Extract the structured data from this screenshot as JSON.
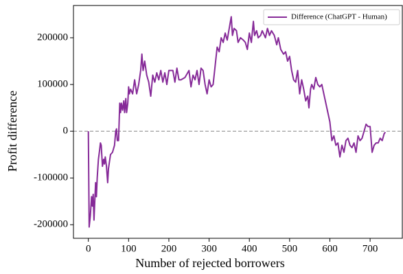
{
  "chart_data": {
    "type": "line",
    "xlabel": "Number of rejected borrowers",
    "ylabel": "Profit difference",
    "xlim": [
      -37,
      780
    ],
    "ylim": [
      -229000,
      269000
    ],
    "xticks": [
      0,
      100,
      200,
      300,
      400,
      500,
      600,
      700
    ],
    "yticks": [
      -200000,
      -100000,
      0,
      100000,
      200000
    ],
    "reference_line": 0,
    "legend": "upper right",
    "x": [
      0,
      2,
      5,
      8,
      10,
      12,
      14,
      16,
      18,
      20,
      22,
      25,
      28,
      30,
      32,
      35,
      38,
      40,
      42,
      45,
      48,
      50,
      55,
      60,
      65,
      68,
      70,
      72,
      75,
      78,
      80,
      82,
      85,
      88,
      90,
      93,
      95,
      98,
      100,
      102,
      105,
      110,
      115,
      120,
      125,
      130,
      133,
      136,
      140,
      145,
      150,
      155,
      160,
      165,
      170,
      175,
      180,
      185,
      190,
      195,
      200,
      210,
      215,
      220,
      225,
      230,
      240,
      250,
      255,
      260,
      265,
      270,
      275,
      280,
      285,
      290,
      295,
      300,
      305,
      310,
      315,
      320,
      325,
      330,
      335,
      340,
      345,
      350,
      355,
      358,
      362,
      368,
      372,
      378,
      385,
      390,
      395,
      400,
      405,
      410,
      413,
      418,
      422,
      428,
      432,
      440,
      445,
      450,
      455,
      462,
      468,
      472,
      478,
      485,
      490,
      495,
      500,
      505,
      510,
      515,
      520,
      525,
      530,
      535,
      540,
      545,
      548,
      552,
      555,
      560,
      565,
      570,
      575,
      580,
      585,
      590,
      595,
      600,
      605,
      610,
      615,
      620,
      625,
      630,
      635,
      640,
      645,
      650,
      655,
      660,
      665,
      670,
      675,
      680,
      685,
      690,
      695,
      700,
      705,
      710,
      715,
      720,
      725,
      730,
      735,
      738
    ],
    "series": [
      {
        "name": "Difference (ChatGPT - Human)",
        "color": "#862a98",
        "values": [
          0,
          -205000,
          -180000,
          -140000,
          -160000,
          -135000,
          -190000,
          -150000,
          -110000,
          -140000,
          -100000,
          -60000,
          -40000,
          -25000,
          -30000,
          -75000,
          -60000,
          -70000,
          -55000,
          -75000,
          -110000,
          -80000,
          -50000,
          -45000,
          -30000,
          0,
          5000,
          -20000,
          -20000,
          60000,
          40000,
          60000,
          45000,
          65000,
          40000,
          70000,
          40000,
          60000,
          95000,
          80000,
          90000,
          80000,
          110000,
          80000,
          100000,
          130000,
          165000,
          130000,
          150000,
          120000,
          105000,
          75000,
          120000,
          105000,
          125000,
          110000,
          130000,
          105000,
          125000,
          100000,
          130000,
          130000,
          105000,
          135000,
          110000,
          110000,
          115000,
          130000,
          95000,
          120000,
          110000,
          130000,
          100000,
          135000,
          130000,
          100000,
          80000,
          110000,
          95000,
          100000,
          140000,
          180000,
          170000,
          200000,
          190000,
          210000,
          195000,
          220000,
          245000,
          205000,
          220000,
          215000,
          190000,
          200000,
          195000,
          190000,
          175000,
          210000,
          190000,
          235000,
          205000,
          215000,
          200000,
          205000,
          215000,
          200000,
          220000,
          205000,
          215000,
          205000,
          185000,
          200000,
          175000,
          165000,
          170000,
          150000,
          160000,
          130000,
          110000,
          105000,
          130000,
          80000,
          110000,
          90000,
          65000,
          75000,
          50000,
          90000,
          100000,
          90000,
          115000,
          100000,
          95000,
          100000,
          80000,
          60000,
          40000,
          20000,
          -20000,
          -10000,
          -30000,
          -25000,
          -55000,
          -30000,
          -45000,
          -20000,
          -15000,
          -30000,
          -35000,
          -25000,
          -45000,
          -10000,
          -20000,
          -15000,
          0,
          15000,
          10000,
          10000,
          -45000,
          -30000,
          -25000,
          -25000,
          -15000,
          -20000,
          -5000,
          -2000
        ]
      }
    ]
  }
}
